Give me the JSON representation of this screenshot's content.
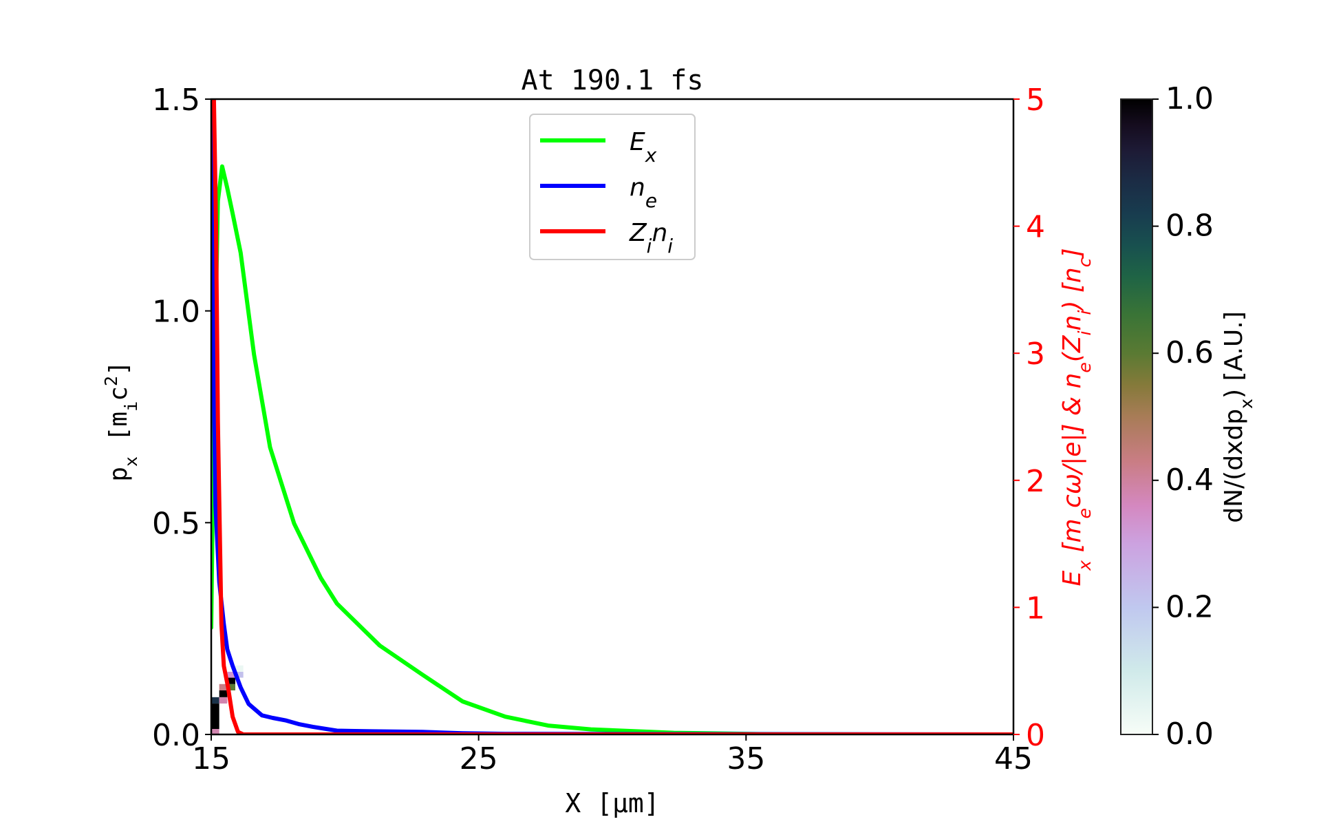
{
  "chart_data": {
    "type": "line",
    "title": "At 190.1 fs",
    "xlabel": "X [μm]",
    "ylabel_left": "p_{x} [m_{i}c^{2}]",
    "ylabel_right": "E_{x} [m_{e}cω/|e|] & n_{e}(Z_{i}n_{i}) [n_{c}]",
    "colorbar_label": "dN/(dxdp_{x}) [A.U.]",
    "xlim": [
      15,
      45
    ],
    "ylim_left": [
      0,
      1.5
    ],
    "ylim_right": [
      0,
      5
    ],
    "colorbar_lim": [
      0,
      1
    ],
    "x_ticks": [
      "15",
      "25",
      "35",
      "45"
    ],
    "y_ticks_left": [
      "0.0",
      "0.5",
      "1.0",
      "1.5"
    ],
    "y_ticks_right": [
      "0",
      "1",
      "2",
      "3",
      "4",
      "5"
    ],
    "colorbar_ticks": [
      "0.0",
      "0.2",
      "0.4",
      "0.6",
      "0.8",
      "1.0"
    ],
    "grid": false,
    "legend_placement": "upper-center",
    "right_axis_color": "#ff0000",
    "colormap": "cubehelix_r",
    "series": [
      {
        "name": "E_{x}",
        "color": "#00ff00",
        "axis": "right",
        "x": [
          15.0,
          15.1,
          15.25,
          15.41,
          15.6,
          15.8,
          16.1,
          16.6,
          17.2,
          18.1,
          19.1,
          19.7,
          21.3,
          22.9,
          24.4,
          26.0,
          27.6,
          29.2,
          32.3,
          35.5,
          40,
          45
        ],
        "y": [
          0.84,
          2.6,
          4.2,
          4.47,
          4.3,
          4.1,
          3.79,
          2.99,
          2.26,
          1.66,
          1.23,
          1.03,
          0.7,
          0.47,
          0.26,
          0.14,
          0.07,
          0.04,
          0.013,
          0.003,
          0.0,
          0.0
        ]
      },
      {
        "name": "n_{e}",
        "color": "#0000ff",
        "axis": "right",
        "x": [
          15.0,
          15.08,
          15.16,
          15.3,
          15.47,
          15.6,
          15.8,
          16.1,
          16.4,
          16.9,
          17.3,
          17.8,
          18.3,
          18.8,
          19.7,
          21.0,
          22.9,
          24.4,
          26.0,
          30,
          45
        ],
        "y": [
          5.0,
          3.0,
          1.8,
          1.2,
          0.87,
          0.67,
          0.54,
          0.37,
          0.24,
          0.15,
          0.13,
          0.11,
          0.08,
          0.06,
          0.03,
          0.025,
          0.02,
          0.01,
          0.005,
          0.003,
          0.0
        ]
      },
      {
        "name": "Z_{i}n_{i}",
        "color": "#ff0000",
        "axis": "right",
        "x": [
          15.0,
          15.1,
          15.18,
          15.25,
          15.38,
          15.47,
          15.63,
          15.8,
          16.0,
          16.2,
          45
        ],
        "y": [
          5.0,
          5.0,
          4.0,
          2.46,
          0.87,
          0.54,
          0.37,
          0.14,
          0.02,
          0.0,
          0.0
        ]
      }
    ],
    "phase_space_cells": [
      {
        "x": [
          15.0,
          15.3
        ],
        "p": [
          0.0,
          0.013
        ],
        "value": 0.38
      },
      {
        "x": [
          15.0,
          15.3
        ],
        "p": [
          0.013,
          0.073
        ],
        "value": 1.0
      },
      {
        "x": [
          15.0,
          15.3
        ],
        "p": [
          0.073,
          0.088
        ],
        "value": 0.85
      },
      {
        "x": [
          15.3,
          15.6
        ],
        "p": [
          0.073,
          0.088
        ],
        "value": 0.38
      },
      {
        "x": [
          15.3,
          15.6
        ],
        "p": [
          0.088,
          0.104
        ],
        "value": 1.0
      },
      {
        "x": [
          15.3,
          15.6
        ],
        "p": [
          0.104,
          0.119
        ],
        "value": 0.43
      },
      {
        "x": [
          15.6,
          15.9
        ],
        "p": [
          0.104,
          0.119
        ],
        "value": 0.6
      },
      {
        "x": [
          15.6,
          15.9
        ],
        "p": [
          0.119,
          0.134
        ],
        "value": 1.0
      },
      {
        "x": [
          15.6,
          15.9
        ],
        "p": [
          0.134,
          0.148
        ],
        "value": 0.33
      },
      {
        "x": [
          15.9,
          16.2
        ],
        "p": [
          0.134,
          0.148
        ],
        "value": 0.22
      },
      {
        "x": [
          15.9,
          16.2
        ],
        "p": [
          0.148,
          0.163
        ],
        "value": 0.03
      }
    ]
  }
}
